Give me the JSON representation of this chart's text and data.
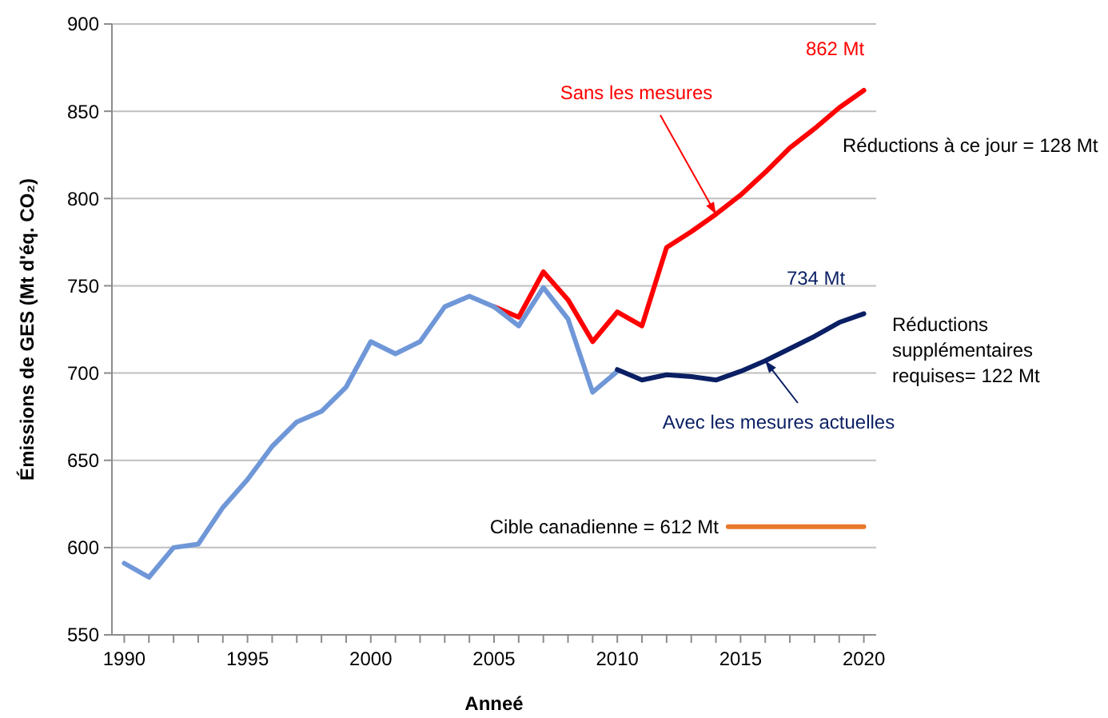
{
  "chart_data": {
    "type": "line",
    "xlabel": "Anneé",
    "ylabel": "Émissions de GES (Mt d'éq. CO₂)",
    "xlim": [
      1989.5,
      2020.5
    ],
    "ylim": [
      550,
      900
    ],
    "xticks": [
      1990,
      {
        "value": 1991,
        "label": null
      },
      {
        "value": 1992,
        "label": null
      },
      {
        "value": 1993,
        "label": null
      },
      {
        "value": 1994,
        "label": null
      },
      1995,
      {
        "value": 1996,
        "label": null
      },
      {
        "value": 1997,
        "label": null
      },
      {
        "value": 1998,
        "label": null
      },
      {
        "value": 1999,
        "label": null
      },
      2000,
      {
        "value": 2001,
        "label": null
      },
      {
        "value": 2002,
        "label": null
      },
      {
        "value": 2003,
        "label": null
      },
      {
        "value": 2004,
        "label": null
      },
      2005,
      {
        "value": 2006,
        "label": null
      },
      {
        "value": 2007,
        "label": null
      },
      {
        "value": 2008,
        "label": null
      },
      {
        "value": 2009,
        "label": null
      },
      2010,
      {
        "value": 2011,
        "label": null
      },
      {
        "value": 2012,
        "label": null
      },
      {
        "value": 2013,
        "label": null
      },
      {
        "value": 2014,
        "label": null
      },
      2015,
      {
        "value": 2016,
        "label": null
      },
      {
        "value": 2017,
        "label": null
      },
      {
        "value": 2018,
        "label": null
      },
      {
        "value": 2019,
        "label": null
      },
      2020
    ],
    "yticks": [
      550,
      600,
      650,
      700,
      750,
      800,
      850,
      900
    ],
    "grid": "y",
    "line_style": "solid",
    "marker": "none",
    "series": [
      {
        "color": "#ff0000",
        "x": [
          2005,
          2006,
          2007,
          2008,
          2009,
          2010,
          2011,
          2012,
          2013,
          2014,
          2015,
          2016,
          2017,
          2018,
          2019,
          2020
        ],
        "values": [
          738,
          732,
          758,
          742,
          718,
          735,
          727,
          772,
          781,
          791,
          802,
          815,
          829,
          840,
          852,
          862
        ]
      },
      {
        "color": "#6f97d8",
        "x": [
          1990,
          1991,
          1992,
          1993,
          1994,
          1995,
          1996,
          1997,
          1998,
          1999,
          2000,
          2001,
          2002,
          2003,
          2004,
          2005,
          2006,
          2007,
          2008,
          2009,
          2010
        ],
        "values": [
          591,
          583,
          600,
          602,
          623,
          639,
          658,
          672,
          678,
          692,
          718,
          711,
          718,
          738,
          744,
          738,
          727,
          749,
          731,
          689,
          701
        ]
      },
      {
        "color": "#0a1f64",
        "x": [
          2010,
          2011,
          2012,
          2013,
          2014,
          2015,
          2016,
          2017,
          2018,
          2019,
          2020
        ],
        "values": [
          702,
          696,
          699,
          698,
          696,
          701,
          707,
          714,
          721,
          729,
          734
        ]
      },
      {
        "color": "#e8792b",
        "x": [
          2014.5,
          2020
        ],
        "values": [
          612,
          612
        ]
      }
    ],
    "annotations": [
      {
        "text": "Sans les mesures",
        "x": 2014,
        "y": 791
      },
      {
        "text": "Avec les mesures actuelles",
        "x": 2016,
        "y": 707
      },
      {
        "text": "862 Mt",
        "x": 2020,
        "y": 862
      },
      {
        "text": "734 Mt",
        "x": 2020,
        "y": 734
      },
      {
        "text": "Cible canadienne = 612 Mt",
        "x": 2014.5,
        "y": 612
      },
      "Réductions à ce jour = 128 Mt",
      "Réductions supplémentaires requises= 122 Mt"
    ]
  }
}
